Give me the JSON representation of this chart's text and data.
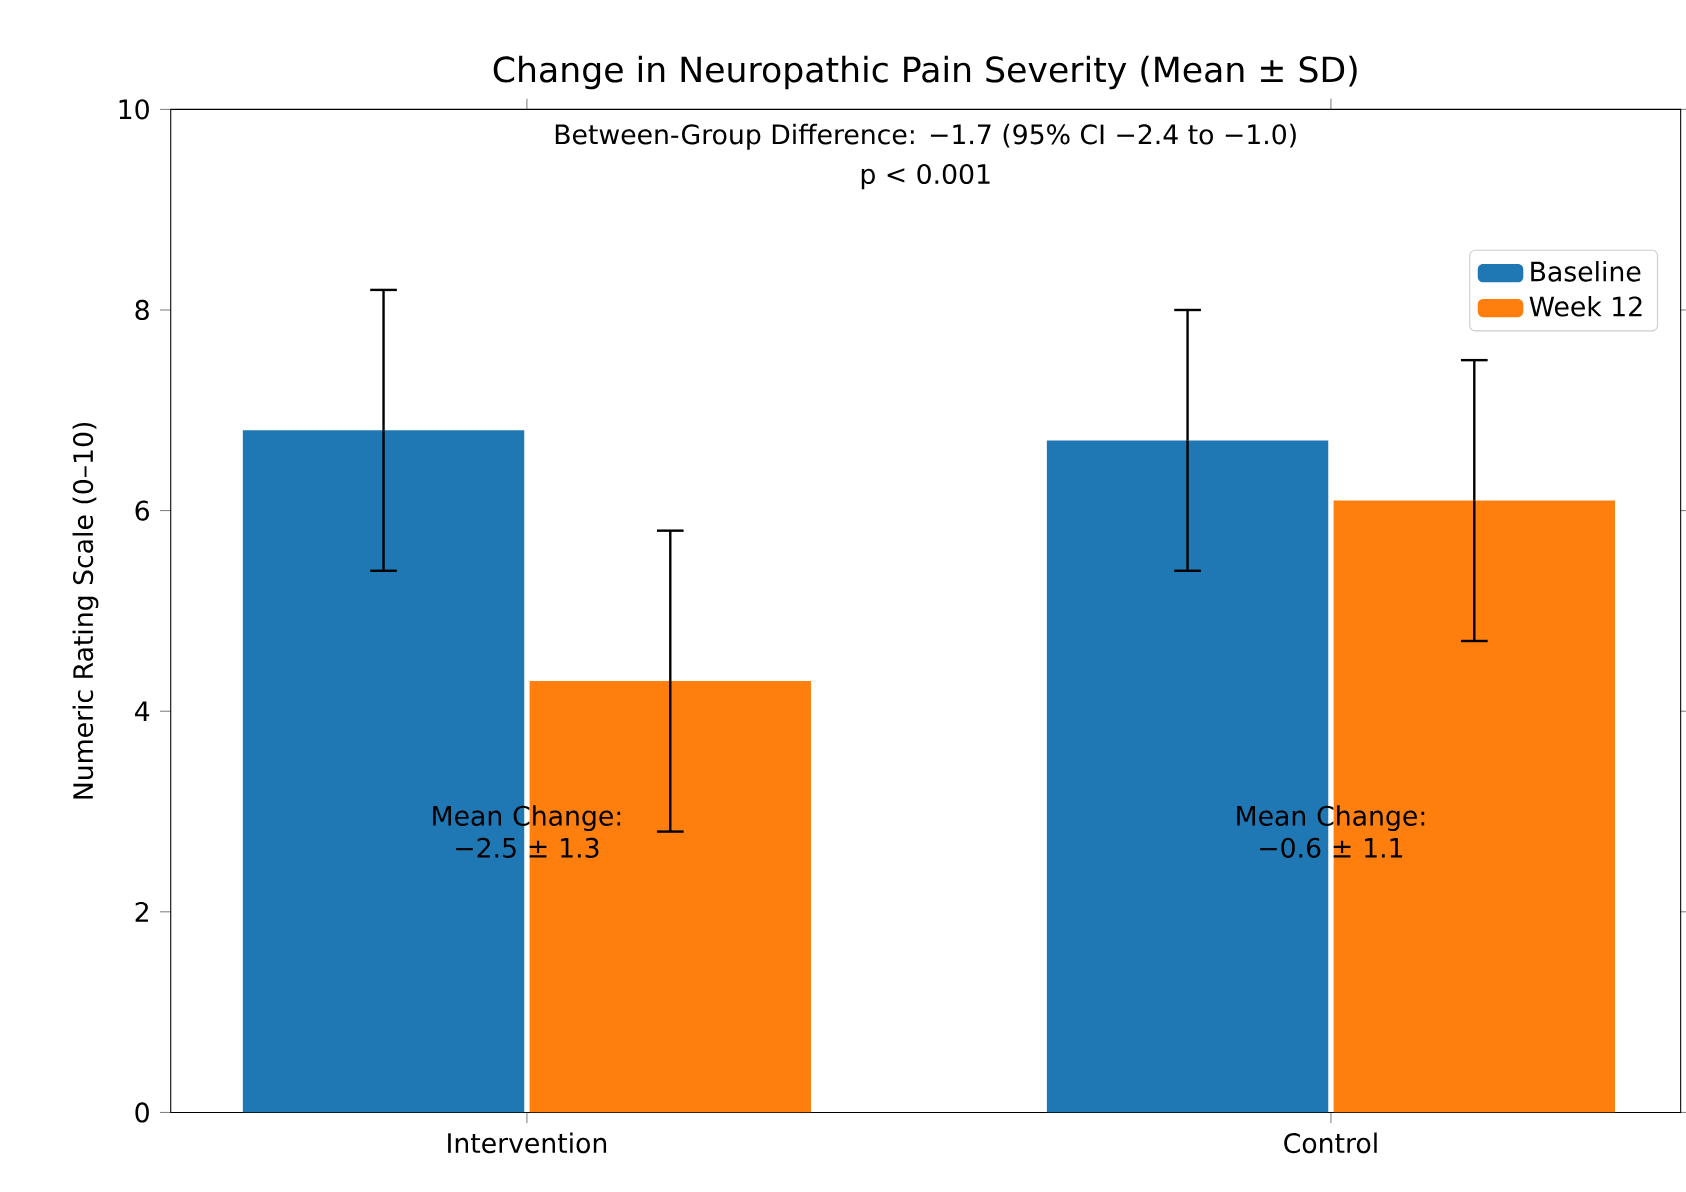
{
  "chart_data": {
    "type": "bar",
    "title": "Change in Neuropathic Pain Severity (Mean ± SD)",
    "ylabel": "Numeric Rating Scale (0–10)",
    "categories": [
      "Intervention",
      "Control"
    ],
    "series": [
      {
        "name": "Baseline",
        "color": "#1f77b4",
        "values": [
          6.8,
          6.7
        ],
        "errors": [
          1.4,
          1.3
        ]
      },
      {
        "name": "Week 12",
        "color": "#ff7f0e",
        "values": [
          4.3,
          6.1
        ],
        "errors": [
          1.5,
          1.4
        ]
      }
    ],
    "ylim": [
      0,
      10
    ],
    "yticks": [
      0,
      2,
      4,
      6,
      8,
      10
    ],
    "legend": "top right",
    "annotations": [
      "Between-Group Difference: −1.7 (95% CI −2.4 to −1.0)",
      "p < 0.001",
      {
        "text": "Mean Change: −2.5 ± 1.3",
        "x": "Intervention",
        "y": 2.8
      },
      {
        "text": "Mean Change: −0.6 ± 1.1",
        "x": "Control",
        "y": 2.8
      }
    ]
  }
}
